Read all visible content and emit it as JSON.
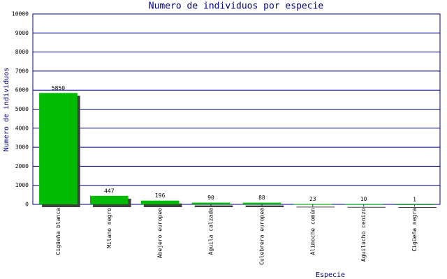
{
  "chart_data": {
    "type": "bar",
    "title": "Numero de individuos por especie",
    "y_label": "Numero de individuos",
    "x_label": "Especie",
    "categories": [
      "Cigüeña blanca",
      "Milano negro",
      "Abejero europeo",
      "Aguila calzada",
      "Culebrera europea",
      "Alimoche común",
      "Aguilucho cenizo",
      "Cigüeña negra"
    ],
    "values": [
      5850,
      447,
      196,
      90,
      88,
      23,
      10,
      1
    ],
    "color": "#00bb00",
    "shadow_color": "#404040",
    "grid_color": "#000080",
    "ylim": [
      0,
      10000
    ],
    "yticks": [
      0,
      1000,
      2000,
      3000,
      4000,
      5000,
      6000,
      7000,
      8000,
      9000,
      10000
    ],
    "grid": true
  }
}
